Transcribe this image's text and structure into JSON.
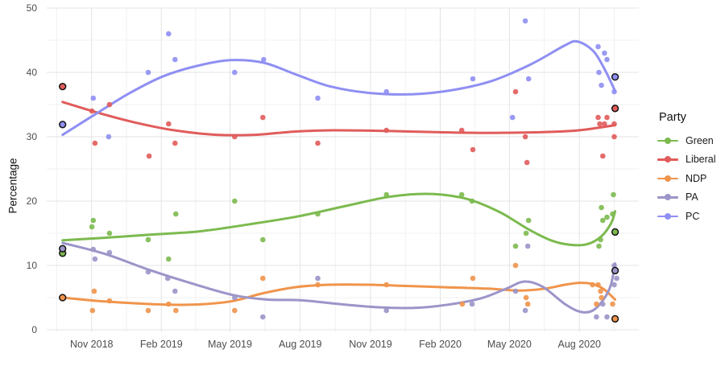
{
  "figure": {
    "y_axis_title": "Percentage",
    "legend_title": "Party"
  },
  "chart_data": {
    "type": "scatter",
    "title": "",
    "xlabel": "",
    "ylabel": "Percentage",
    "grid": "on",
    "legend_position": "right",
    "legend_title": "Party",
    "x_axis": {
      "domain": [
        2018.672,
        2020.795
      ],
      "ticks": [
        {
          "label": "Nov 2018",
          "x": 2018.833
        },
        {
          "label": "Feb 2019",
          "x": 2019.083
        },
        {
          "label": "May 2019",
          "x": 2019.329
        },
        {
          "label": "Aug 2019",
          "x": 2019.581
        },
        {
          "label": "Nov 2019",
          "x": 2019.833
        },
        {
          "label": "Feb 2020",
          "x": 2020.083
        },
        {
          "label": "May 2020",
          "x": 2020.331
        },
        {
          "label": "Aug 2020",
          "x": 2020.582
        }
      ],
      "minor_ticks": [
        2018.708,
        2018.958,
        2019.206,
        2019.455,
        2019.707,
        2019.958,
        2020.207,
        2020.456,
        2020.707
      ]
    },
    "y_axis": {
      "domain": [
        0,
        50
      ],
      "ticks": [
        0,
        10,
        20,
        30,
        40,
        50
      ],
      "minor_ticks": [
        5,
        15,
        25,
        35,
        45
      ]
    },
    "series": [
      {
        "name": "Green",
        "color": "#7CBA4F",
        "points": [
          [
            2018.834,
            16
          ],
          [
            2018.839,
            17
          ],
          [
            2018.897,
            15
          ],
          [
            2019.036,
            14
          ],
          [
            2019.109,
            11
          ],
          [
            2019.135,
            18
          ],
          [
            2019.346,
            20
          ],
          [
            2019.447,
            14
          ],
          [
            2019.644,
            18
          ],
          [
            2019.89,
            21
          ],
          [
            2020.16,
            21
          ],
          [
            2020.197,
            20
          ],
          [
            2020.353,
            13
          ],
          [
            2020.391,
            15
          ],
          [
            2020.4,
            17
          ],
          [
            2020.652,
            13
          ],
          [
            2020.658,
            14
          ],
          [
            2020.661,
            19
          ],
          [
            2020.666,
            17
          ],
          [
            2020.681,
            17.5
          ],
          [
            2020.701,
            18
          ],
          [
            2020.704,
            21
          ]
        ],
        "election_points": [
          [
            2018.729,
            11.9
          ],
          [
            2020.71,
            15.2
          ]
        ],
        "trend": [
          [
            2018.729,
            13.9
          ],
          [
            2018.88,
            14.3
          ],
          [
            2019.05,
            14.8
          ],
          [
            2019.22,
            15.3
          ],
          [
            2019.4,
            16.4
          ],
          [
            2019.57,
            17.6
          ],
          [
            2019.74,
            19.2
          ],
          [
            2019.89,
            20.6
          ],
          [
            2020.0,
            21.1
          ],
          [
            2020.09,
            21.0
          ],
          [
            2020.19,
            20.2
          ],
          [
            2020.3,
            18.2
          ],
          [
            2020.4,
            15.6
          ],
          [
            2020.48,
            13.9
          ],
          [
            2020.55,
            13.2
          ],
          [
            2020.61,
            13.3
          ],
          [
            2020.66,
            14.5
          ],
          [
            2020.695,
            16.5
          ],
          [
            2020.71,
            18.4
          ]
        ]
      },
      {
        "name": "Liberal",
        "color": "#E05C5B",
        "points": [
          [
            2018.834,
            34
          ],
          [
            2018.845,
            29
          ],
          [
            2018.897,
            35
          ],
          [
            2019.039,
            27
          ],
          [
            2019.109,
            32
          ],
          [
            2019.132,
            29
          ],
          [
            2019.346,
            30
          ],
          [
            2019.447,
            33
          ],
          [
            2019.644,
            29
          ],
          [
            2019.89,
            31
          ],
          [
            2020.16,
            31
          ],
          [
            2020.2,
            28
          ],
          [
            2020.353,
            37
          ],
          [
            2020.388,
            30
          ],
          [
            2020.394,
            26
          ],
          [
            2020.649,
            33
          ],
          [
            2020.655,
            32
          ],
          [
            2020.666,
            27
          ],
          [
            2020.672,
            32
          ],
          [
            2020.681,
            33
          ],
          [
            2020.707,
            32
          ],
          [
            2020.707,
            30
          ]
        ],
        "election_points": [
          [
            2018.729,
            37.8
          ],
          [
            2020.71,
            34.4
          ]
        ],
        "trend": [
          [
            2018.729,
            35.4
          ],
          [
            2018.85,
            33.8
          ],
          [
            2018.99,
            32.2
          ],
          [
            2019.13,
            31.0
          ],
          [
            2019.28,
            30.3
          ],
          [
            2019.42,
            30.3
          ],
          [
            2019.56,
            30.8
          ],
          [
            2019.7,
            31.0
          ],
          [
            2019.89,
            30.9
          ],
          [
            2020.08,
            30.7
          ],
          [
            2020.26,
            30.6
          ],
          [
            2020.44,
            30.7
          ],
          [
            2020.58,
            31.0
          ],
          [
            2020.71,
            31.8
          ]
        ]
      },
      {
        "name": "NDP",
        "color": "#F0944B",
        "points": [
          [
            2018.836,
            3
          ],
          [
            2018.842,
            6
          ],
          [
            2018.897,
            4.5
          ],
          [
            2019.036,
            3
          ],
          [
            2019.109,
            4
          ],
          [
            2019.135,
            3
          ],
          [
            2019.346,
            3
          ],
          [
            2019.447,
            8
          ],
          [
            2019.644,
            7
          ],
          [
            2019.89,
            7
          ],
          [
            2020.162,
            4
          ],
          [
            2020.2,
            8
          ],
          [
            2020.353,
            10
          ],
          [
            2020.391,
            5
          ],
          [
            2020.397,
            4
          ],
          [
            2020.629,
            7
          ],
          [
            2020.643,
            4
          ],
          [
            2020.649,
            7
          ],
          [
            2020.658,
            6
          ],
          [
            2020.661,
            5
          ],
          [
            2020.701,
            4
          ]
        ],
        "election_points": [
          [
            2018.729,
            5.0
          ],
          [
            2020.71,
            1.7
          ]
        ],
        "trend": [
          [
            2018.729,
            5.0
          ],
          [
            2018.88,
            4.4
          ],
          [
            2019.04,
            4.0
          ],
          [
            2019.19,
            3.9
          ],
          [
            2019.33,
            4.4
          ],
          [
            2019.45,
            5.7
          ],
          [
            2019.56,
            6.6
          ],
          [
            2019.68,
            7.0
          ],
          [
            2019.83,
            7.0
          ],
          [
            2019.97,
            6.8
          ],
          [
            2020.11,
            6.6
          ],
          [
            2020.25,
            6.4
          ],
          [
            2020.37,
            6.1
          ],
          [
            2020.46,
            6.4
          ],
          [
            2020.53,
            7.0
          ],
          [
            2020.585,
            7.3
          ],
          [
            2020.63,
            7.1
          ],
          [
            2020.67,
            6.3
          ],
          [
            2020.71,
            4.7
          ]
        ]
      },
      {
        "name": "PA",
        "color": "#9B95C9",
        "points": [
          [
            2018.839,
            12.5
          ],
          [
            2018.845,
            11
          ],
          [
            2018.897,
            12
          ],
          [
            2019.036,
            9
          ],
          [
            2019.106,
            8
          ],
          [
            2019.132,
            6
          ],
          [
            2019.346,
            5
          ],
          [
            2019.447,
            2
          ],
          [
            2019.644,
            8
          ],
          [
            2019.89,
            3
          ],
          [
            2020.197,
            4
          ],
          [
            2020.353,
            6
          ],
          [
            2020.388,
            3
          ],
          [
            2020.397,
            13
          ],
          [
            2020.643,
            2
          ],
          [
            2020.666,
            4
          ],
          [
            2020.681,
            2
          ],
          [
            2020.707,
            10
          ],
          [
            2020.707,
            7
          ],
          [
            2020.716,
            8
          ]
        ],
        "election_points": [
          [
            2018.729,
            12.6
          ],
          [
            2020.71,
            9.2
          ]
        ],
        "trend": [
          [
            2018.729,
            13.5
          ],
          [
            2018.88,
            11.8
          ],
          [
            2019.04,
            9.3
          ],
          [
            2019.2,
            7.1
          ],
          [
            2019.34,
            5.4
          ],
          [
            2019.46,
            4.7
          ],
          [
            2019.58,
            4.6
          ],
          [
            2019.72,
            4.0
          ],
          [
            2019.86,
            3.5
          ],
          [
            2019.99,
            3.4
          ],
          [
            2020.11,
            3.9
          ],
          [
            2020.23,
            4.9
          ],
          [
            2020.32,
            6.4
          ],
          [
            2020.385,
            7.5
          ],
          [
            2020.45,
            6.7
          ],
          [
            2020.53,
            4.0
          ],
          [
            2020.585,
            2.8
          ],
          [
            2020.63,
            3.0
          ],
          [
            2020.67,
            4.8
          ],
          [
            2020.695,
            7.0
          ],
          [
            2020.71,
            10.3
          ]
        ]
      },
      {
        "name": "PC",
        "color": "#8F8FF3",
        "points": [
          [
            2018.839,
            36
          ],
          [
            2018.894,
            30
          ],
          [
            2019.036,
            40
          ],
          [
            2019.109,
            46
          ],
          [
            2019.132,
            42
          ],
          [
            2019.346,
            40
          ],
          [
            2019.45,
            42
          ],
          [
            2019.644,
            36
          ],
          [
            2019.89,
            37
          ],
          [
            2020.2,
            39
          ],
          [
            2020.342,
            33
          ],
          [
            2020.388,
            48
          ],
          [
            2020.4,
            39
          ],
          [
            2020.649,
            44
          ],
          [
            2020.652,
            40
          ],
          [
            2020.661,
            38
          ],
          [
            2020.672,
            43
          ],
          [
            2020.681,
            42
          ],
          [
            2020.707,
            37
          ]
        ],
        "election_points": [
          [
            2018.729,
            31.9
          ],
          [
            2020.71,
            39.3
          ]
        ],
        "trend": [
          [
            2018.729,
            30.3
          ],
          [
            2018.85,
            33.6
          ],
          [
            2018.97,
            36.8
          ],
          [
            2019.09,
            39.4
          ],
          [
            2019.21,
            41.0
          ],
          [
            2019.33,
            41.9
          ],
          [
            2019.45,
            41.5
          ],
          [
            2019.57,
            39.6
          ],
          [
            2019.69,
            37.8
          ],
          [
            2019.83,
            36.8
          ],
          [
            2019.98,
            36.6
          ],
          [
            2020.12,
            37.2
          ],
          [
            2020.27,
            38.7
          ],
          [
            2020.41,
            41.3
          ],
          [
            2020.53,
            44.2
          ],
          [
            2020.575,
            44.8
          ],
          [
            2020.63,
            43.4
          ],
          [
            2020.67,
            40.7
          ],
          [
            2020.71,
            37.1
          ]
        ]
      }
    ],
    "style": {
      "major_grid_color": "#E3E3E3",
      "minor_grid_color": "#F1F1F1",
      "election_point_stroke": "#111111",
      "tick_label_color": "#4d4d4d"
    }
  }
}
